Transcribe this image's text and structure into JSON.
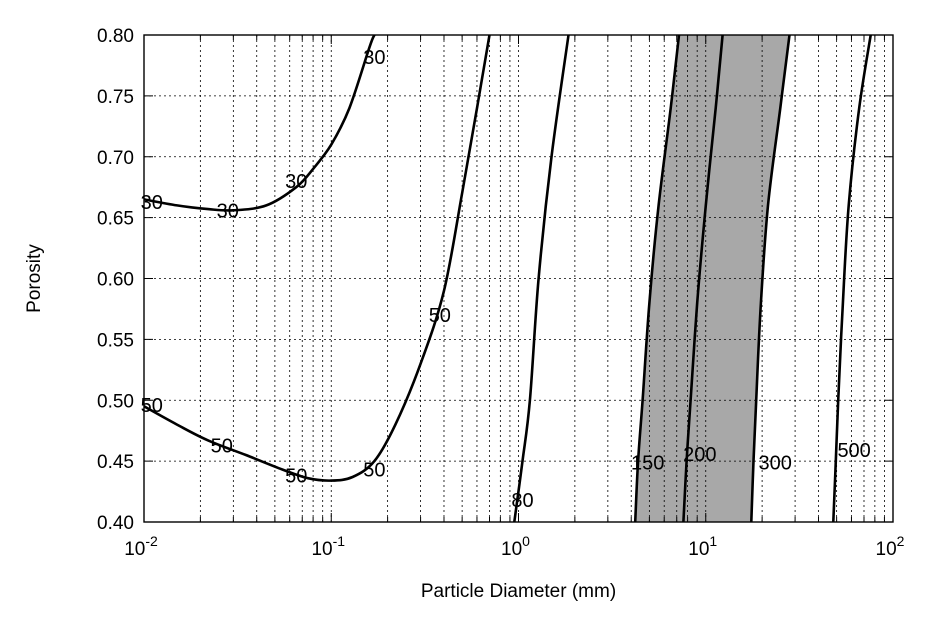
{
  "chart_data": {
    "type": "line",
    "title": "",
    "xlabel": "Particle Diameter (mm)",
    "ylabel": "Porosity",
    "x_scale": "log",
    "xlim": [
      0.01,
      100
    ],
    "ylim": [
      0.4,
      0.8
    ],
    "x_tick_labels": [
      {
        "value": 0.01,
        "base": "10",
        "exp": "-2"
      },
      {
        "value": 0.1,
        "base": "10",
        "exp": "-1"
      },
      {
        "value": 1,
        "base": "10",
        "exp": "0"
      },
      {
        "value": 10,
        "base": "10",
        "exp": "1"
      },
      {
        "value": 100,
        "base": "10",
        "exp": "2"
      }
    ],
    "y_ticks": [
      0.4,
      0.45,
      0.5,
      0.55,
      0.6,
      0.65,
      0.7,
      0.75,
      0.8
    ],
    "y_tick_labels": [
      "0.40",
      "0.45",
      "0.50",
      "0.55",
      "0.60",
      "0.65",
      "0.70",
      "0.75",
      "0.80"
    ],
    "grid": true,
    "shaded_band": {
      "between": [
        "150",
        "300"
      ],
      "color": "#a8a8a8"
    },
    "series": [
      {
        "name": "30",
        "points": [
          [
            0.01,
            0.665
          ],
          [
            0.015,
            0.66
          ],
          [
            0.022,
            0.657
          ],
          [
            0.03,
            0.656
          ],
          [
            0.045,
            0.66
          ],
          [
            0.065,
            0.675
          ],
          [
            0.08,
            0.69
          ],
          [
            0.1,
            0.71
          ],
          [
            0.125,
            0.74
          ],
          [
            0.16,
            0.79
          ],
          [
            0.17,
            0.8
          ]
        ]
      },
      {
        "name": "50",
        "points": [
          [
            0.01,
            0.495
          ],
          [
            0.015,
            0.48
          ],
          [
            0.022,
            0.467
          ],
          [
            0.035,
            0.455
          ],
          [
            0.055,
            0.443
          ],
          [
            0.075,
            0.436
          ],
          [
            0.1,
            0.434
          ],
          [
            0.13,
            0.437
          ],
          [
            0.17,
            0.45
          ],
          [
            0.22,
            0.48
          ],
          [
            0.3,
            0.53
          ],
          [
            0.4,
            0.59
          ],
          [
            0.5,
            0.67
          ],
          [
            0.6,
            0.74
          ],
          [
            0.7,
            0.8
          ]
        ]
      },
      {
        "name": "80",
        "points": [
          [
            0.95,
            0.4
          ],
          [
            1.05,
            0.45
          ],
          [
            1.15,
            0.5
          ],
          [
            1.28,
            0.6
          ],
          [
            1.5,
            0.7
          ],
          [
            1.85,
            0.8
          ]
        ]
      },
      {
        "name": "150",
        "points": [
          [
            4.2,
            0.4
          ],
          [
            4.35,
            0.45
          ],
          [
            4.6,
            0.5
          ],
          [
            5.0,
            0.58
          ],
          [
            5.6,
            0.66
          ],
          [
            6.5,
            0.74
          ],
          [
            7.2,
            0.8
          ]
        ]
      },
      {
        "name": "200",
        "points": [
          [
            7.6,
            0.4
          ],
          [
            7.9,
            0.45
          ],
          [
            8.3,
            0.5
          ],
          [
            9.0,
            0.58
          ],
          [
            10.0,
            0.66
          ],
          [
            11.3,
            0.74
          ],
          [
            12.3,
            0.8
          ]
        ]
      },
      {
        "name": "300",
        "points": [
          [
            17.5,
            0.4
          ],
          [
            18.0,
            0.45
          ],
          [
            18.6,
            0.5
          ],
          [
            19.7,
            0.58
          ],
          [
            21.5,
            0.66
          ],
          [
            25.0,
            0.74
          ],
          [
            28.0,
            0.8
          ]
        ]
      },
      {
        "name": "500",
        "points": [
          [
            48,
            0.4
          ],
          [
            49.5,
            0.45
          ],
          [
            51,
            0.5
          ],
          [
            54,
            0.58
          ],
          [
            58,
            0.66
          ],
          [
            66,
            0.74
          ],
          [
            76,
            0.8
          ]
        ]
      }
    ],
    "contour_labels": [
      {
        "text": "30",
        "x": 0.17,
        "y": 0.782
      },
      {
        "text": "30",
        "x": 0.065,
        "y": 0.68
      },
      {
        "text": "30",
        "x": 0.028,
        "y": 0.656
      },
      {
        "text": "30",
        "x": 0.011,
        "y": 0.663
      },
      {
        "text": "50",
        "x": 0.38,
        "y": 0.57
      },
      {
        "text": "50",
        "x": 0.011,
        "y": 0.496
      },
      {
        "text": "50",
        "x": 0.026,
        "y": 0.463
      },
      {
        "text": "50",
        "x": 0.065,
        "y": 0.438
      },
      {
        "text": "50",
        "x": 0.17,
        "y": 0.443
      },
      {
        "text": "80",
        "x": 1.05,
        "y": 0.418
      },
      {
        "text": "150",
        "x": 4.9,
        "y": 0.449
      },
      {
        "text": "200",
        "x": 9.3,
        "y": 0.456
      },
      {
        "text": "300",
        "x": 23.5,
        "y": 0.449
      },
      {
        "text": "500",
        "x": 62,
        "y": 0.459
      }
    ]
  }
}
